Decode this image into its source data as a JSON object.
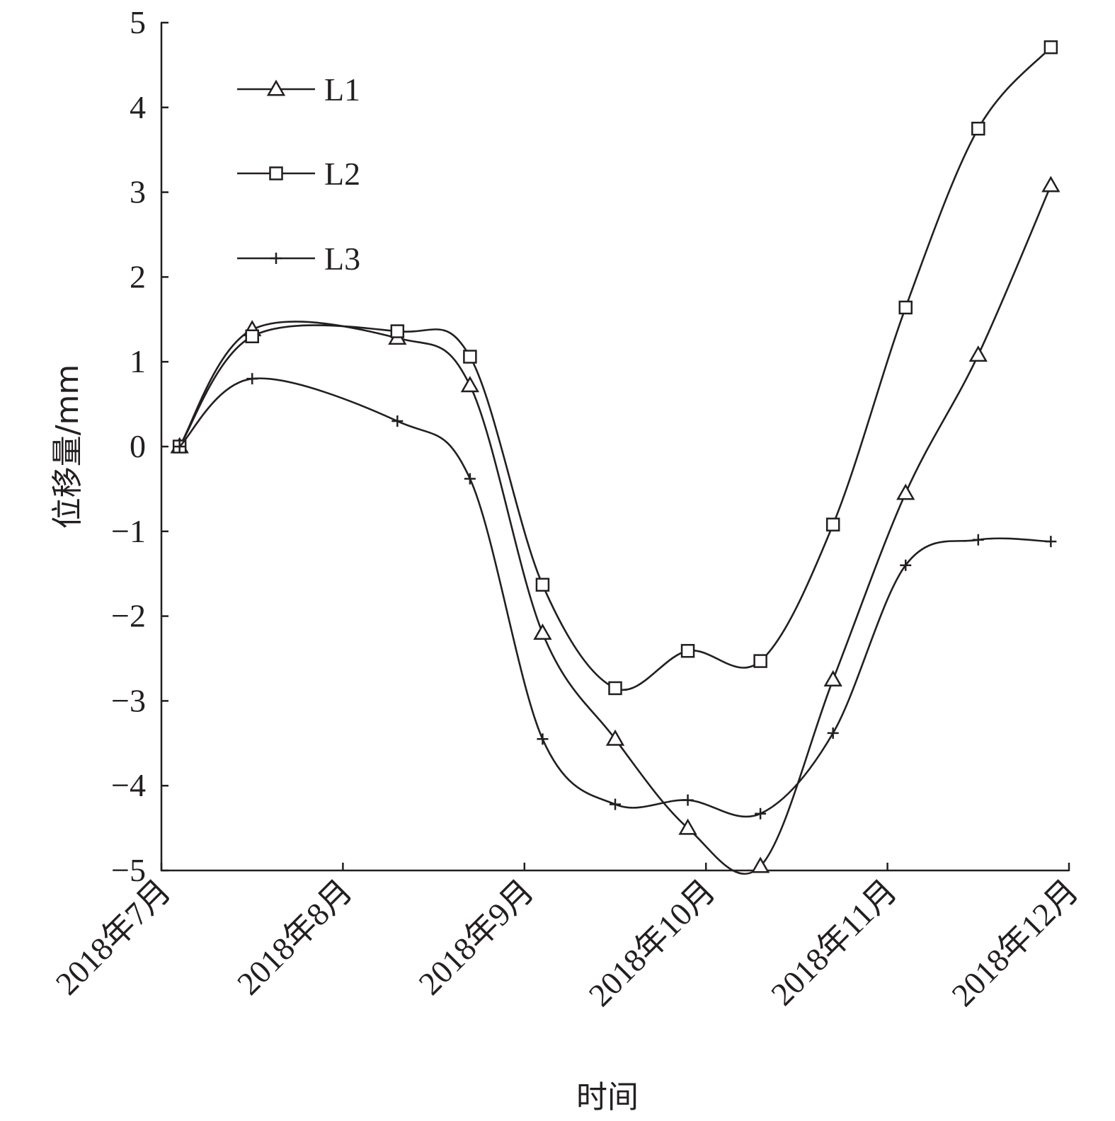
{
  "chart_data": {
    "type": "line",
    "title": "",
    "xlabel": "时间",
    "ylabel": "位移量/mm",
    "ylim": [
      -5,
      5
    ],
    "yticks": [
      5,
      4,
      3,
      2,
      1,
      0,
      -1,
      -2,
      -3,
      -4,
      -5
    ],
    "ytick_labels": [
      "5",
      "4",
      "3",
      "2",
      "1",
      "0",
      "−1",
      "−2",
      "−3",
      "−4",
      "−5"
    ],
    "xlim": [
      0,
      5
    ],
    "xtick_positions": [
      0,
      1,
      2,
      3,
      4,
      5
    ],
    "xtick_labels": [
      "2018年7月",
      "2018年8月",
      "2018年9月",
      "2018年10月",
      "2018年11月",
      "2018年12月"
    ],
    "grid": false,
    "legend": "top-left",
    "line_color": "#231f20",
    "series": [
      {
        "name": "L1",
        "marker": "triangle",
        "x": [
          0.1,
          0.5,
          1.3,
          1.7,
          2.1,
          2.5,
          2.9,
          3.3,
          3.7,
          4.1,
          4.5,
          4.9
        ],
        "values": [
          0.0,
          1.38,
          1.28,
          0.72,
          -2.2,
          -3.45,
          -4.5,
          -4.95,
          -2.75,
          -0.55,
          1.08,
          3.08
        ]
      },
      {
        "name": "L2",
        "marker": "square",
        "x": [
          0.1,
          0.5,
          1.3,
          1.7,
          2.1,
          2.5,
          2.9,
          3.3,
          3.7,
          4.1,
          4.5,
          4.9
        ],
        "values": [
          0.0,
          1.3,
          1.36,
          1.06,
          -1.63,
          -2.85,
          -2.41,
          -2.53,
          -0.92,
          1.64,
          3.75,
          4.71
        ]
      },
      {
        "name": "L3",
        "marker": "plus",
        "x": [
          0.1,
          0.5,
          1.3,
          1.7,
          2.1,
          2.5,
          2.9,
          3.3,
          3.7,
          4.1,
          4.5,
          4.9
        ],
        "values": [
          0.0,
          0.8,
          0.3,
          -0.38,
          -3.45,
          -4.22,
          -4.17,
          -4.33,
          -3.38,
          -1.4,
          -1.1,
          -1.12
        ]
      }
    ]
  }
}
